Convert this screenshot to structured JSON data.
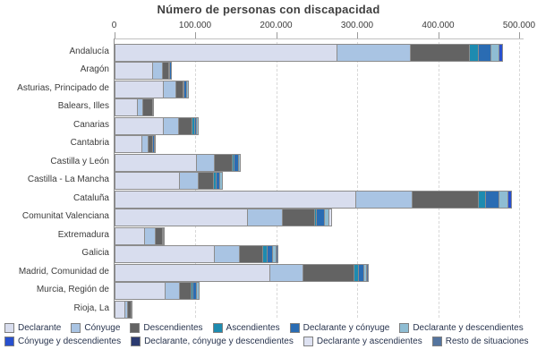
{
  "title": "Número de personas con discapacidad",
  "chart_data": {
    "type": "bar",
    "orientation": "horizontal",
    "stacked": true,
    "title": "Número de personas con discapacidad",
    "xlabel": "",
    "ylabel": "",
    "xlim": [
      0,
      500000
    ],
    "x_tick_labels": [
      "0",
      "100.000",
      "200.000",
      "300.000",
      "400.000",
      "500.000"
    ],
    "x_tick_values": [
      0,
      100000,
      200000,
      300000,
      400000,
      500000
    ],
    "grid": "vertical-dashed",
    "legend_position": "bottom",
    "legend_rows": [
      6,
      4
    ],
    "categories": [
      "Andalucía",
      "Aragón",
      "Asturias, Principado de",
      "Balears, Illes",
      "Canarias",
      "Cantabria",
      "Castilla y León",
      "Castilla - La Mancha",
      "Cataluña",
      "Comunitat Valenciana",
      "Extremadura",
      "Galicia",
      "Madrid, Comunidad de",
      "Murcia, Región de",
      "Rioja, La"
    ],
    "series": [
      {
        "name": "Declarante",
        "color": "#d8ddee",
        "values": [
          273000,
          45000,
          59000,
          26000,
          59000,
          32000,
          99000,
          79000,
          296000,
          162000,
          35000,
          121000,
          190000,
          61000,
          11000
        ]
      },
      {
        "name": "Cónyuge",
        "color": "#a9c4e3",
        "values": [
          91000,
          12000,
          15000,
          7000,
          18000,
          8000,
          23000,
          23000,
          70000,
          43000,
          14000,
          31000,
          41000,
          17000,
          3000
        ]
      },
      {
        "name": "Descendientes",
        "color": "#636363",
        "values": [
          73000,
          8000,
          9000,
          12000,
          17000,
          5000,
          22000,
          19000,
          82000,
          40000,
          8000,
          29000,
          63000,
          15000,
          5000
        ]
      },
      {
        "name": "Ascendientes",
        "color": "#1d8bb0",
        "values": [
          11000,
          1000,
          1000,
          0,
          3000,
          0,
          2000,
          3000,
          8000,
          3000,
          0,
          6000,
          5000,
          2000,
          0
        ]
      },
      {
        "name": "Declarante y cónyuge",
        "color": "#2a6cb3",
        "values": [
          15000,
          2000,
          3000,
          0,
          3000,
          2000,
          5000,
          4000,
          17000,
          10000,
          2000,
          6000,
          7000,
          5000,
          1000
        ]
      },
      {
        "name": "Declarante y descendientes",
        "color": "#8fbdd3",
        "values": [
          10000,
          1000,
          2000,
          1000,
          2000,
          1000,
          3000,
          3000,
          11000,
          5000,
          1000,
          5000,
          4000,
          3000,
          0
        ]
      },
      {
        "name": "Cónyuge y descendientes",
        "color": "#2750cf",
        "values": [
          4000,
          0,
          0,
          0,
          0,
          0,
          0,
          0,
          4000,
          0,
          0,
          0,
          0,
          0,
          0
        ]
      },
      {
        "name": "Declarante, cónyuge y descendientes",
        "color": "#2b3a70",
        "values": [
          0,
          0,
          0,
          0,
          0,
          0,
          0,
          0,
          0,
          0,
          0,
          0,
          0,
          0,
          0
        ]
      },
      {
        "name": "Declarante y ascendientes",
        "color": "#dee2f2",
        "values": [
          0,
          0,
          0,
          0,
          0,
          0,
          0,
          0,
          0,
          3000,
          0,
          0,
          0,
          0,
          0
        ]
      },
      {
        "name": "Resto de situaciones",
        "color": "#54749e",
        "values": [
          0,
          0,
          0,
          0,
          0,
          1000,
          0,
          0,
          0,
          0,
          0,
          2000,
          2000,
          0,
          0
        ]
      }
    ]
  }
}
